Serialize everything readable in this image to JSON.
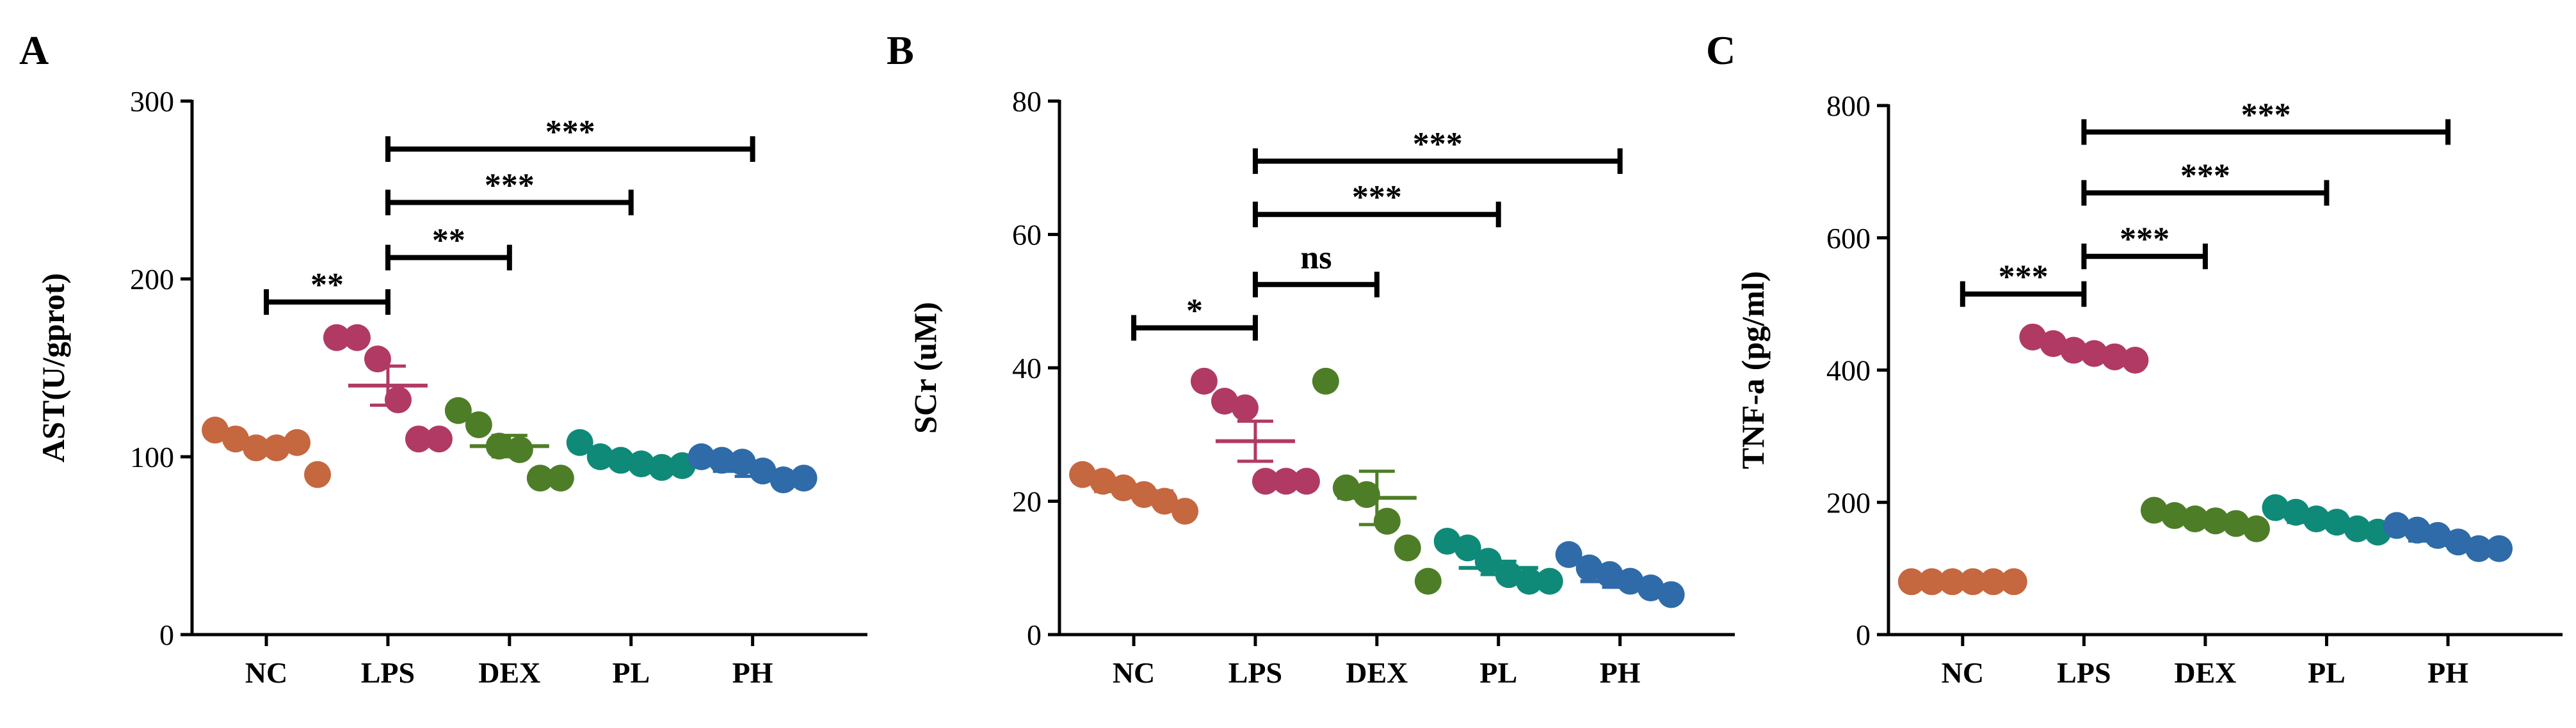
{
  "colors": {
    "NC": "#C5673F",
    "LPS": "#B03A63",
    "DEX": "#4E7D27",
    "PL": "#0F8A78",
    "PH": "#2E6BA8",
    "axis": "#000000"
  },
  "chart_data": [
    {
      "type": "scatter",
      "panel": "A",
      "ylabel": "AST(U/gprot)",
      "ylim": [
        0,
        300
      ],
      "yticks": [
        0,
        100,
        200,
        300
      ],
      "categories": [
        "NC",
        "LPS",
        "DEX",
        "PL",
        "PH"
      ],
      "groups": [
        {
          "name": "NC",
          "points": [
            115,
            110,
            105,
            105,
            108,
            90
          ],
          "mean": 105,
          "sem": 4
        },
        {
          "name": "LPS",
          "points": [
            167,
            167,
            155,
            132,
            110,
            110
          ],
          "mean": 140,
          "sem": 11
        },
        {
          "name": "DEX",
          "points": [
            126,
            118,
            106,
            104,
            88,
            88
          ],
          "mean": 106,
          "sem": 6
        },
        {
          "name": "PL",
          "points": [
            108,
            100,
            98,
            96,
            94,
            95
          ],
          "mean": 98,
          "sem": 2
        },
        {
          "name": "PH",
          "points": [
            100,
            98,
            97,
            92,
            87,
            88
          ],
          "mean": 92,
          "sem": 3
        }
      ],
      "comparisons": [
        {
          "from": "NC",
          "to": "LPS",
          "label": "**",
          "y": 187
        },
        {
          "from": "LPS",
          "to": "DEX",
          "label": "**",
          "y": 212
        },
        {
          "from": "LPS",
          "to": "PL",
          "label": "***",
          "y": 243
        },
        {
          "from": "LPS",
          "to": "PH",
          "label": "***",
          "y": 273
        }
      ]
    },
    {
      "type": "scatter",
      "panel": "B",
      "ylabel": "SCr (uM)",
      "ylim": [
        0,
        80
      ],
      "yticks": [
        0,
        20,
        40,
        60,
        80
      ],
      "categories": [
        "NC",
        "LPS",
        "DEX",
        "PL",
        "PH"
      ],
      "groups": [
        {
          "name": "NC",
          "points": [
            24,
            23,
            22,
            21,
            20,
            18.5
          ],
          "mean": 21.5,
          "sem": 0.9
        },
        {
          "name": "LPS",
          "points": [
            38,
            35,
            34,
            23,
            23,
            23
          ],
          "mean": 29,
          "sem": 3
        },
        {
          "name": "DEX",
          "points": [
            38,
            22,
            21,
            17,
            13,
            8
          ],
          "mean": 20.5,
          "sem": 4
        },
        {
          "name": "PL",
          "points": [
            14,
            13,
            11,
            9,
            8,
            8
          ],
          "mean": 10,
          "sem": 1
        },
        {
          "name": "PH",
          "points": [
            12,
            10,
            9,
            8,
            7,
            6
          ],
          "mean": 8,
          "sem": 0.9
        }
      ],
      "comparisons": [
        {
          "from": "NC",
          "to": "LPS",
          "label": "*",
          "y": 46
        },
        {
          "from": "LPS",
          "to": "DEX",
          "label": "ns",
          "y": 52.5
        },
        {
          "from": "LPS",
          "to": "PL",
          "label": "***",
          "y": 63
        },
        {
          "from": "LPS",
          "to": "PH",
          "label": "***",
          "y": 71
        }
      ]
    },
    {
      "type": "scatter",
      "panel": "C",
      "ylabel": "TNF-a (pg/ml)",
      "ylim": [
        0,
        800
      ],
      "yticks": [
        0,
        200,
        400,
        600,
        800
      ],
      "categories": [
        "NC",
        "LPS",
        "DEX",
        "PL",
        "PH"
      ],
      "groups": [
        {
          "name": "NC",
          "points": [
            80,
            80,
            80,
            80,
            80,
            80
          ],
          "mean": 80,
          "sem": 0.5
        },
        {
          "name": "LPS",
          "points": [
            450,
            440,
            430,
            425,
            420,
            415
          ],
          "mean": 430,
          "sem": 6
        },
        {
          "name": "DEX",
          "points": [
            188,
            180,
            175,
            172,
            168,
            160
          ],
          "mean": 172,
          "sem": 4
        },
        {
          "name": "PL",
          "points": [
            192,
            185,
            175,
            170,
            160,
            155
          ],
          "mean": 170,
          "sem": 8
        },
        {
          "name": "PH",
          "points": [
            165,
            158,
            150,
            140,
            130,
            130
          ],
          "mean": 142,
          "sem": 7
        }
      ],
      "comparisons": [
        {
          "from": "NC",
          "to": "LPS",
          "label": "***",
          "y": 515
        },
        {
          "from": "LPS",
          "to": "DEX",
          "label": "***",
          "y": 572
        },
        {
          "from": "LPS",
          "to": "PL",
          "label": "***",
          "y": 668
        },
        {
          "from": "LPS",
          "to": "PH",
          "label": "***",
          "y": 760
        }
      ]
    }
  ]
}
